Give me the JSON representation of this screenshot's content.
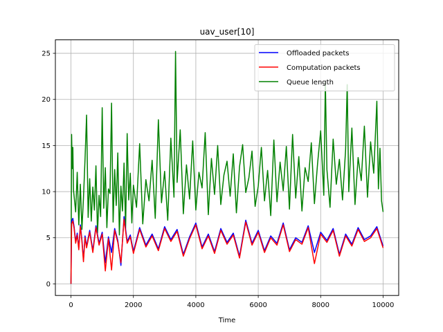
{
  "chart_data": {
    "type": "line",
    "title": "uav_user[10]",
    "xlabel": "Time",
    "ylabel": "",
    "xlim": [
      -500,
      10500
    ],
    "ylim": [
      -1.26,
      26.46
    ],
    "xticks": [
      0,
      2000,
      4000,
      6000,
      8000,
      10000
    ],
    "xtick_labels": [
      "0",
      "2000",
      "4000",
      "6000",
      "8000",
      "10000"
    ],
    "yticks": [
      0,
      5,
      10,
      15,
      20,
      25
    ],
    "ytick_labels": [
      "0",
      "5",
      "10",
      "15",
      "20",
      "25"
    ],
    "grid": true,
    "legend_position": "upper right",
    "series": [
      {
        "name": "Offloaded packets",
        "color": "#0000ff",
        "x": [
          0,
          20,
          60,
          100,
          150,
          200,
          250,
          300,
          350,
          400,
          450,
          500,
          600,
          700,
          800,
          900,
          1000,
          1100,
          1200,
          1300,
          1400,
          1500,
          1600,
          1700,
          1800,
          1900,
          2000,
          2200,
          2400,
          2600,
          2800,
          3000,
          3200,
          3400,
          3600,
          3800,
          4000,
          4200,
          4400,
          4600,
          4800,
          5000,
          5200,
          5400,
          5600,
          5800,
          6000,
          6200,
          6400,
          6600,
          6800,
          7000,
          7200,
          7400,
          7600,
          7800,
          8000,
          8200,
          8400,
          8600,
          8800,
          9000,
          9200,
          9400,
          9600,
          9800,
          10000
        ],
        "y": [
          0,
          6.8,
          7.1,
          6.2,
          4.6,
          5.5,
          3.9,
          6.4,
          4.8,
          2.6,
          5.2,
          4.1,
          5.8,
          3.6,
          6.3,
          4.4,
          5.6,
          2.3,
          5.1,
          3.4,
          6.0,
          4.7,
          2.0,
          7.3,
          4.6,
          5.3,
          3.5,
          6.1,
          4.2,
          5.4,
          3.8,
          6.2,
          4.8,
          5.9,
          3.2,
          5.1,
          6.6,
          4.0,
          5.4,
          3.5,
          6.0,
          4.5,
          5.5,
          3.0,
          6.9,
          4.4,
          5.8,
          3.6,
          5.2,
          4.4,
          6.6,
          3.7,
          5.0,
          4.5,
          6.3,
          3.4,
          5.6,
          4.7,
          6.0,
          3.2,
          5.4,
          4.3,
          6.1,
          4.8,
          5.2,
          6.2,
          4.1
        ]
      },
      {
        "name": "Computation packets",
        "color": "#ff0000",
        "x": [
          0,
          20,
          60,
          100,
          150,
          200,
          250,
          300,
          350,
          400,
          450,
          500,
          600,
          700,
          800,
          900,
          1000,
          1100,
          1200,
          1300,
          1400,
          1500,
          1600,
          1700,
          1800,
          1900,
          2000,
          2200,
          2400,
          2600,
          2800,
          3000,
          3200,
          3400,
          3600,
          3800,
          4000,
          4200,
          4400,
          4600,
          4800,
          5000,
          5200,
          5400,
          5600,
          5800,
          6000,
          6200,
          6400,
          6600,
          6800,
          7000,
          7200,
          7400,
          7600,
          7800,
          8000,
          8200,
          8400,
          8600,
          8800,
          9000,
          9200,
          9400,
          9600,
          9800,
          10000
        ],
        "y": [
          0,
          6.5,
          6.8,
          6.0,
          4.4,
          5.3,
          3.7,
          6.2,
          4.6,
          2.4,
          5.0,
          3.9,
          5.6,
          3.4,
          6.1,
          4.2,
          5.4,
          1.4,
          4.9,
          1.5,
          5.8,
          4.5,
          2.3,
          7.0,
          4.4,
          5.1,
          3.3,
          5.9,
          4.0,
          5.2,
          3.6,
          6.0,
          4.6,
          5.7,
          3.0,
          4.9,
          6.4,
          3.8,
          5.2,
          3.3,
          5.8,
          4.3,
          5.3,
          2.8,
          6.7,
          4.2,
          5.6,
          3.4,
          5.0,
          4.2,
          6.4,
          3.5,
          4.8,
          4.3,
          6.1,
          2.2,
          5.4,
          4.5,
          5.8,
          3.0,
          5.2,
          4.1,
          5.9,
          4.6,
          5.0,
          6.0,
          3.9
        ]
      },
      {
        "name": "Queue length",
        "color": "#008000",
        "x": [
          0,
          20,
          40,
          60,
          80,
          100,
          150,
          200,
          250,
          300,
          350,
          400,
          450,
          500,
          550,
          600,
          650,
          700,
          750,
          800,
          850,
          900,
          950,
          1000,
          1050,
          1100,
          1150,
          1200,
          1250,
          1300,
          1350,
          1400,
          1450,
          1500,
          1550,
          1600,
          1650,
          1700,
          1750,
          1800,
          1850,
          1900,
          1950,
          2000,
          2100,
          2200,
          2300,
          2400,
          2500,
          2600,
          2700,
          2800,
          2900,
          3000,
          3100,
          3200,
          3300,
          3350,
          3400,
          3500,
          3600,
          3700,
          3800,
          3900,
          4000,
          4100,
          4200,
          4300,
          4400,
          4500,
          4600,
          4700,
          4800,
          4900,
          5000,
          5100,
          5200,
          5300,
          5400,
          5500,
          5600,
          5700,
          5800,
          5900,
          6000,
          6100,
          6200,
          6300,
          6400,
          6500,
          6600,
          6700,
          6800,
          6900,
          7000,
          7100,
          7200,
          7300,
          7400,
          7500,
          7600,
          7700,
          7800,
          7900,
          8000,
          8100,
          8150,
          8200,
          8300,
          8400,
          8500,
          8600,
          8700,
          8800,
          8850,
          8900,
          9000,
          9100,
          9200,
          9300,
          9400,
          9500,
          9600,
          9700,
          9800,
          9850,
          9900,
          9950,
          10000
        ],
        "y": [
          0,
          16.2,
          12.5,
          14.8,
          10.2,
          9.5,
          7.8,
          12.1,
          6.4,
          10.8,
          5.9,
          9.3,
          13.5,
          18.3,
          7.2,
          11.4,
          6.8,
          10.5,
          8.0,
          12.8,
          5.5,
          9.6,
          7.3,
          19.1,
          8.2,
          12.6,
          6.1,
          10.3,
          9.8,
          19.6,
          6.7,
          12.4,
          8.5,
          14.2,
          5.3,
          10.6,
          7.9,
          13.1,
          6.0,
          16.3,
          9.1,
          12.0,
          6.6,
          10.7,
          8.3,
          15.2,
          6.5,
          11.3,
          9.0,
          13.4,
          7.1,
          17.8,
          8.8,
          12.2,
          6.9,
          15.8,
          9.4,
          25.2,
          11.0,
          16.7,
          7.6,
          12.9,
          9.2,
          15.5,
          8.0,
          12.1,
          10.4,
          16.4,
          7.5,
          13.6,
          9.7,
          15.0,
          8.6,
          11.8,
          13.3,
          9.5,
          14.1,
          7.7,
          12.7,
          15.1,
          9.9,
          11.5,
          14.4,
          8.4,
          10.6,
          14.8,
          9.0,
          12.3,
          7.4,
          15.6,
          8.9,
          13.2,
          10.1,
          14.9,
          8.1,
          16.2,
          9.3,
          13.8,
          7.9,
          12.6,
          11.1,
          15.3,
          8.7,
          13.0,
          16.6,
          9.6,
          21.9,
          12.4,
          8.3,
          15.7,
          10.8,
          13.5,
          9.1,
          14.6,
          21.6,
          10.0,
          16.9,
          8.6,
          13.7,
          11.2,
          17.1,
          9.4,
          15.4,
          12.0,
          19.8,
          10.3,
          14.7,
          9.0,
          7.8
        ]
      }
    ]
  }
}
